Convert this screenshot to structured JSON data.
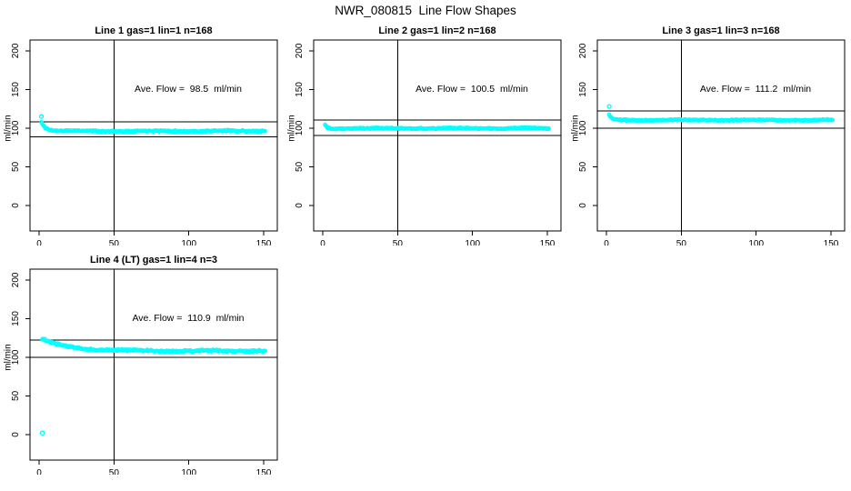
{
  "figure": {
    "title": "NWR_080815  Line Flow Shapes",
    "background": "#ffffff"
  },
  "colors": {
    "points": "#00ffff",
    "axis": "#000000",
    "reference_lines": "#000000",
    "text": "#000000"
  },
  "chart_data": [
    {
      "type": "scatter",
      "title": "Line 1 gas=1 lin=1 n=168",
      "annotation": "Ave. Flow =  98.5  ml/min",
      "ave_flow_ml_min": 98.5,
      "ylabel": "ml/min",
      "xticks": [
        0,
        50,
        100,
        150
      ],
      "yticks": [
        0,
        50,
        100,
        150,
        200
      ],
      "xlim": [
        -6.1,
        159.1
      ],
      "ylim": [
        -33,
        214
      ],
      "grid": "off",
      "vline_x": 50,
      "hlines": [
        108.4,
        88.7
      ],
      "series": {
        "x_start": 1.5,
        "x_end": 151,
        "n": 300,
        "start_value": 108,
        "settle_value": 96.2,
        "decay_tau": 3,
        "noise": 1.2,
        "seed": 11
      },
      "lead_points": [
        [
          1.5,
          115
        ]
      ],
      "outlier_points": []
    },
    {
      "type": "scatter",
      "title": "Line 2 gas=1 lin=2 n=168",
      "annotation": "Ave. Flow =  100.5  ml/min",
      "ave_flow_ml_min": 100.5,
      "ylabel": "ml/min",
      "xticks": [
        0,
        50,
        100,
        150
      ],
      "yticks": [
        0,
        50,
        100,
        150,
        200
      ],
      "xlim": [
        -6.1,
        159.1
      ],
      "ylim": [
        -33,
        214
      ],
      "grid": "off",
      "vline_x": 50,
      "hlines": [
        110.6,
        90.5
      ],
      "series": {
        "x_start": 1.5,
        "x_end": 151,
        "n": 300,
        "start_value": 105,
        "settle_value": 99.7,
        "decay_tau": 1.3,
        "noise": 1.0,
        "seed": 22
      },
      "lead_points": [],
      "outlier_points": []
    },
    {
      "type": "scatter",
      "title": "Line 3 gas=1 lin=3 n=168",
      "annotation": "Ave. Flow =  111.2  ml/min",
      "ave_flow_ml_min": 111.2,
      "ylabel": "ml/min",
      "xticks": [
        0,
        50,
        100,
        150
      ],
      "yticks": [
        0,
        50,
        100,
        150,
        200
      ],
      "xlim": [
        -6.1,
        159.1
      ],
      "ylim": [
        -33,
        214
      ],
      "grid": "off",
      "vline_x": 50,
      "hlines": [
        122.3,
        100.1
      ],
      "series": {
        "x_start": 1.8,
        "x_end": 151,
        "n": 300,
        "start_value": 117,
        "settle_value": 110.4,
        "decay_tau": 1.6,
        "noise": 1.0,
        "seed": 33
      },
      "lead_points": [
        [
          1.8,
          128
        ]
      ],
      "outlier_points": []
    },
    {
      "type": "scatter",
      "title": "Line 4 (LT) gas=1 lin=4 n=3",
      "annotation": "Ave. Flow =  110.9  ml/min",
      "ave_flow_ml_min": 110.9,
      "ylabel": "ml/min",
      "xticks": [
        0,
        50,
        100,
        150
      ],
      "yticks": [
        0,
        50,
        100,
        150,
        200
      ],
      "xlim": [
        -6.1,
        159.1
      ],
      "ylim": [
        -33,
        214
      ],
      "grid": "off",
      "vline_x": 50,
      "hlines": [
        122.0,
        99.8
      ],
      "series": {
        "x_start": 2.0,
        "x_end": 151,
        "n": 300,
        "start_value": 123.5,
        "settle_value": 108.2,
        "decay_tau": 17,
        "noise": 1.7,
        "seed": 44
      },
      "lead_points": [],
      "outlier_points": [
        [
          2.2,
          2
        ]
      ]
    }
  ]
}
